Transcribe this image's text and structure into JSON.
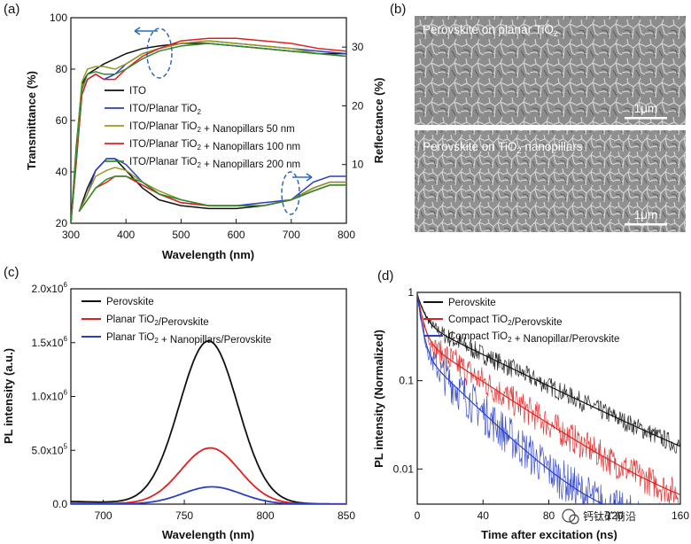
{
  "chart_data": [
    {
      "panel": "(a)",
      "type": "line",
      "xlabel": "Wavelength (nm)",
      "ylabel": "Transmittance (%)",
      "y2label": "Reflectance (%)",
      "xlim": [
        300,
        800
      ],
      "ylim": [
        20,
        100
      ],
      "y2lim": [
        0,
        35
      ],
      "xticks": [
        300,
        400,
        500,
        600,
        700,
        800
      ],
      "yticks": [
        20,
        40,
        60,
        80,
        100
      ],
      "y2ticks": [
        10,
        20,
        30
      ],
      "legend_position": "left-middle",
      "transmittance_series": [
        {
          "name": "ITO",
          "color": "#111111",
          "x": [
            300,
            310,
            320,
            330,
            345,
            360,
            380,
            400,
            430,
            460,
            500,
            550,
            600,
            650,
            700,
            750,
            800
          ],
          "y": [
            20,
            50,
            74,
            78,
            80,
            82,
            84,
            86,
            88,
            89,
            90,
            90,
            89,
            88,
            87,
            86,
            86
          ]
        },
        {
          "name": "ITO/Planar TiO2",
          "color": "#2b3fc4",
          "x": [
            300,
            310,
            320,
            330,
            345,
            360,
            380,
            400,
            430,
            460,
            500,
            550,
            600,
            650,
            700,
            750,
            800
          ],
          "y": [
            20,
            45,
            70,
            76,
            78,
            76,
            78,
            82,
            86,
            88,
            90,
            91,
            90,
            89,
            88,
            87,
            86
          ]
        },
        {
          "name": "ITO/Planar TiO2 + Nanopillars 50 nm",
          "color": "#9a9a20",
          "x": [
            300,
            310,
            320,
            330,
            345,
            360,
            380,
            400,
            430,
            460,
            500,
            550,
            600,
            650,
            700,
            750,
            800
          ],
          "y": [
            20,
            48,
            75,
            80,
            81,
            81,
            80,
            82,
            86,
            88,
            90,
            91,
            90,
            89,
            88,
            86,
            85
          ]
        },
        {
          "name": "ITO/Planar TiO2 + Nanopillars 100 nm",
          "color": "#e02020",
          "x": [
            300,
            310,
            320,
            330,
            345,
            360,
            380,
            400,
            430,
            460,
            500,
            550,
            600,
            650,
            700,
            750,
            800
          ],
          "y": [
            20,
            44,
            70,
            76,
            78,
            76,
            76,
            80,
            85,
            88,
            91,
            92,
            92,
            91,
            90,
            88,
            87
          ]
        },
        {
          "name": "ITO/Planar TiO2 + Nanopillars 200 nm",
          "color": "#2e8b2e",
          "x": [
            300,
            310,
            320,
            330,
            345,
            360,
            380,
            400,
            430,
            460,
            500,
            550,
            600,
            650,
            700,
            750,
            800
          ],
          "y": [
            20,
            46,
            72,
            78,
            79,
            78,
            78,
            80,
            84,
            87,
            89,
            90,
            89,
            88,
            87,
            86,
            85
          ]
        }
      ],
      "reflectance_series": [
        {
          "name": "ITO",
          "color": "#111111",
          "x": [
            315,
            330,
            345,
            365,
            380,
            400,
            430,
            460,
            500,
            550,
            600,
            650,
            700,
            740,
            770,
            800
          ],
          "y": [
            2,
            6,
            9,
            11,
            11,
            9,
            6,
            4,
            3,
            2.5,
            2.5,
            3,
            4,
            6,
            7,
            7
          ]
        },
        {
          "name": "ITO/Planar TiO2",
          "color": "#2b3fc4",
          "x": [
            315,
            330,
            345,
            365,
            380,
            400,
            430,
            460,
            500,
            550,
            600,
            650,
            700,
            740,
            770,
            800
          ],
          "y": [
            2,
            5,
            9,
            11,
            11,
            10,
            7,
            5,
            3.5,
            3,
            3,
            3.5,
            4,
            7,
            8,
            8
          ]
        },
        {
          "name": "ITO/Planar TiO2 + Nanopillars 50 nm",
          "color": "#9a9a20",
          "x": [
            315,
            330,
            345,
            365,
            380,
            400,
            430,
            460,
            500,
            550,
            600,
            650,
            700,
            740,
            770,
            800
          ],
          "y": [
            2,
            5,
            8,
            9,
            9.5,
            9,
            7,
            5.5,
            4,
            3,
            3,
            3,
            4,
            6,
            7,
            7
          ]
        },
        {
          "name": "ITO/Planar TiO2 + Nanopillars 100 nm",
          "color": "#e02020",
          "x": [
            315,
            330,
            345,
            365,
            380,
            400,
            430,
            460,
            500,
            550,
            600,
            650,
            700,
            740,
            770,
            800
          ],
          "y": [
            2,
            4,
            6,
            7,
            8,
            8,
            6.5,
            5,
            3.5,
            3,
            3,
            3,
            4,
            5.5,
            6.5,
            6.5
          ]
        },
        {
          "name": "ITO/Planar TiO2 + Nanopillars 200 nm",
          "color": "#2e8b2e",
          "x": [
            315,
            330,
            345,
            365,
            380,
            400,
            430,
            460,
            500,
            550,
            600,
            650,
            700,
            740,
            770,
            800
          ],
          "y": [
            2,
            4,
            6,
            7.5,
            8,
            8,
            7,
            5,
            4,
            3,
            3,
            3,
            4,
            5.5,
            6.5,
            6.5
          ]
        }
      ]
    },
    {
      "panel": "(c)",
      "type": "line",
      "xlabel": "Wavelength (nm)",
      "ylabel": "PL intensity (a.u.)",
      "xlim": [
        680,
        850
      ],
      "ylim": [
        0,
        2000000
      ],
      "xticks": [
        700,
        750,
        800,
        850
      ],
      "yticks": [
        0,
        500000,
        1000000,
        1500000,
        2000000
      ],
      "ytick_labels": [
        "0.0",
        "5.0x10",
        "1.0x10",
        "1.5x10",
        "2.0x10"
      ],
      "ytick_exps": [
        "",
        "5",
        "6",
        "6",
        "6"
      ],
      "legend_position": "top-left",
      "series": [
        {
          "name": "Perovskite",
          "color": "#111111",
          "amplitude": 1510000,
          "center": 765,
          "sigma": 18,
          "baseline": 25000
        },
        {
          "name": "Planar TiO2/Perovskite",
          "color": "#e02020",
          "amplitude": 520000,
          "center": 766,
          "sigma": 18,
          "baseline": 8000
        },
        {
          "name": "Planar TiO2 + Nanopillars/Perovskite",
          "color": "#2b3fc4",
          "amplitude": 160000,
          "center": 767,
          "sigma": 18,
          "baseline": 3000
        }
      ]
    },
    {
      "panel": "(d)",
      "type": "line",
      "xlabel": "Time after excitation (ns)",
      "ylabel": "PL intensity (Normalized)",
      "xlim": [
        0,
        160
      ],
      "ylim": [
        0.004,
        1
      ],
      "yscale": "log",
      "xticks": [
        0,
        40,
        80,
        120,
        160
      ],
      "yticks": [
        0.01,
        0.1,
        1
      ],
      "ytick_labels": [
        "0.01",
        "0.1",
        "1"
      ],
      "legend_position": "top-left",
      "series": [
        {
          "name": "Perovskite",
          "color": "#111111",
          "a1": 0.5,
          "t1": 4,
          "a2": 0.45,
          "t2": 48,
          "noise": 0.25
        },
        {
          "name": "Compact TiO2/Perovskite",
          "color": "#e02020",
          "a1": 0.65,
          "t1": 3,
          "a2": 0.3,
          "t2": 35,
          "noise": 0.4
        },
        {
          "name": "Compact TiO2 + Nanopillar/Perovskite",
          "color": "#2b3fc4",
          "a1": 0.75,
          "t1": 2.5,
          "a2": 0.22,
          "t2": 24,
          "noise": 0.55
        }
      ]
    }
  ],
  "sem": {
    "panel_label": "(b)",
    "top_label_pre": "Perovskite on planar TiO",
    "top_label_sub": "2",
    "bottom_label_pre": "Perovskite on TiO",
    "bottom_label_sub": "2",
    "bottom_label_post": " nanopillars",
    "scale_label": "1μm"
  },
  "watermark": "钙钛矿前沿"
}
